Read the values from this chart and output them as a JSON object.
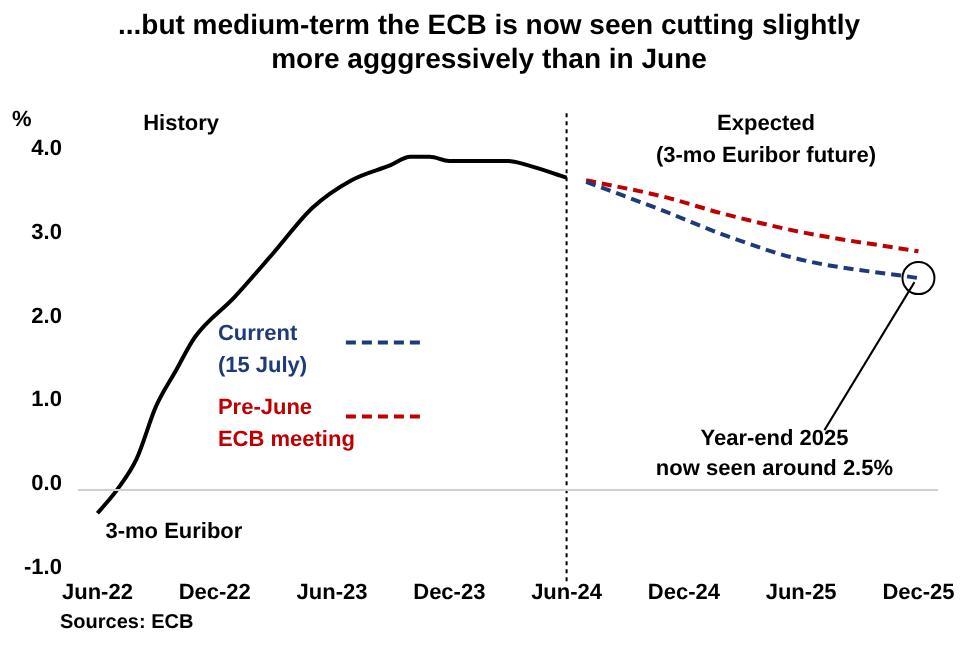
{
  "chart_data": {
    "type": "line",
    "title": "...but medium-term the ECB is now seen cutting slightly more agggressively than in June",
    "ylabel": "%",
    "series": [
      {
        "name": "3-mo Euribor",
        "color": "#000000",
        "line_style": "solid",
        "x": [
          "2022-06",
          "2022-07",
          "2022-08",
          "2022-09",
          "2022-10",
          "2022-11",
          "2023-01",
          "2023-03",
          "2023-05",
          "2023-07",
          "2023-09",
          "2023-10",
          "2023-11",
          "2023-12",
          "2024-01",
          "2024-03",
          "2024-04",
          "2024-06"
        ],
        "values": [
          -0.28,
          0.0,
          0.37,
          1.0,
          1.42,
          1.83,
          2.3,
          2.83,
          3.37,
          3.7,
          3.88,
          3.98,
          3.98,
          3.93,
          3.93,
          3.93,
          3.88,
          3.73
        ]
      },
      {
        "name": "Current\n(15 July)",
        "color": "#1f3a7a",
        "line_style": "dashed",
        "x": [
          "2024-07",
          "2024-11",
          "2025-02",
          "2025-06",
          "2025-12"
        ],
        "values": [
          3.68,
          3.33,
          3.05,
          2.75,
          2.53
        ]
      },
      {
        "name": "Pre-June\nECB meeting",
        "color": "#c00000",
        "line_style": "dashed",
        "x": [
          "2024-07",
          "2024-11",
          "2025-02",
          "2025-06",
          "2025-12"
        ],
        "values": [
          3.7,
          3.5,
          3.3,
          3.08,
          2.85
        ]
      }
    ],
    "xlim": [
      "2022-05",
      "2026-01"
    ],
    "xticks": [
      {
        "value": "2022-06",
        "label": "Jun-22"
      },
      {
        "value": "2022-12",
        "label": "Dec-22"
      },
      {
        "value": "2023-06",
        "label": "Jun-23"
      },
      {
        "value": "2023-12",
        "label": "Dec-23"
      },
      {
        "value": "2024-06",
        "label": "Jun-24"
      },
      {
        "value": "2024-12",
        "label": "Dec-24"
      },
      {
        "value": "2025-06",
        "label": "Jun-25"
      },
      {
        "value": "2025-12",
        "label": "Dec-25"
      }
    ],
    "ylim": [
      -1,
      4.5
    ],
    "yticks": [
      {
        "value": -1,
        "label": "-1.0"
      },
      {
        "value": 0,
        "label": "0.0"
      },
      {
        "value": 1,
        "label": "1.0"
      },
      {
        "value": 2,
        "label": "2.0"
      },
      {
        "value": 3,
        "label": "3.0"
      },
      {
        "value": 4,
        "label": "4.0"
      }
    ],
    "ref_lines": [
      {
        "axis": "x",
        "value": "2024-06",
        "line_style": "dotted",
        "color": "#000000"
      },
      {
        "axis": "y",
        "value": 0,
        "line_style": "solid",
        "color": "#d0d0d0"
      }
    ],
    "annotations": [
      "History",
      "Expected\n(3-mo Euribor future)",
      {
        "text": "Year-end 2025\nnow seen around 2.5%",
        "x": "2025-12",
        "y": 2.53
      },
      "Sources: ECB"
    ],
    "grid": false,
    "legend": "left",
    "marker": "none"
  }
}
